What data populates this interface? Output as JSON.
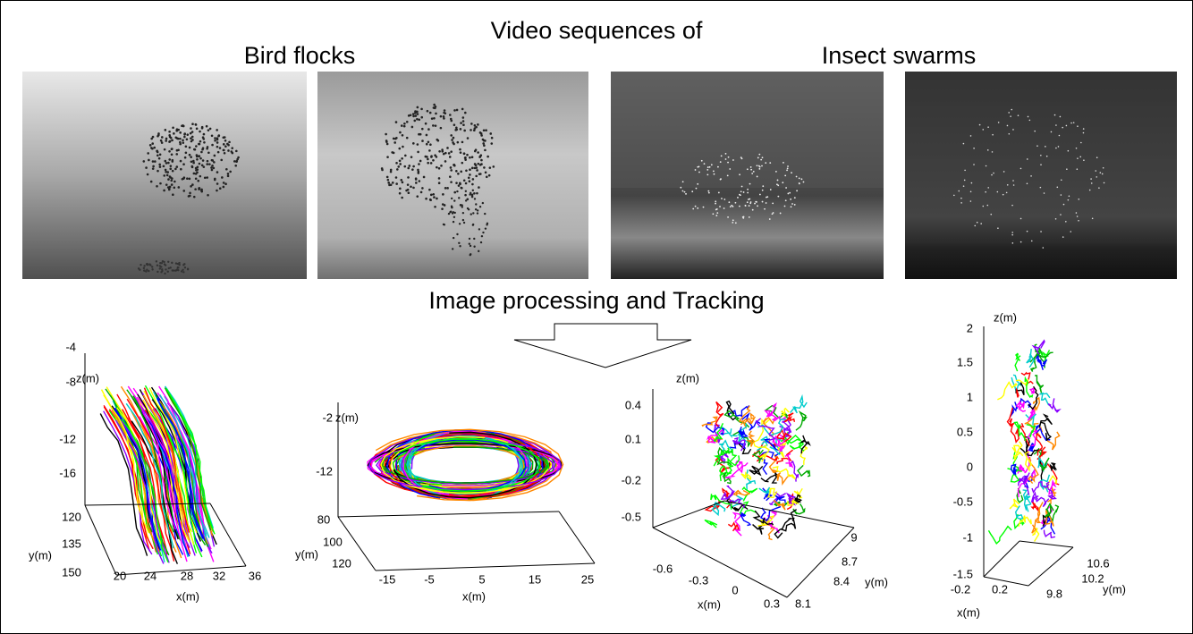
{
  "header": {
    "title": "Video sequences of",
    "left_label": "Bird flocks",
    "right_label": "Insect swarms"
  },
  "processing_label": "Image processing and Tracking",
  "plots": [
    {
      "z_label": "z(m)",
      "y_label": "y(m)",
      "x_label": "x(m)",
      "z_ticks": [
        -4,
        -8,
        -12,
        -16
      ],
      "y_ticks": [
        120,
        135,
        150
      ],
      "x_ticks": [
        20,
        24,
        28,
        32,
        36
      ]
    },
    {
      "z_label": "z(m)",
      "y_label": "y(m)",
      "x_label": "x(m)",
      "z_ticks": [
        -2,
        -12
      ],
      "y_ticks": [
        80,
        100,
        120
      ],
      "x_ticks": [
        -15,
        -5,
        5,
        15,
        25
      ]
    },
    {
      "z_label": "z(m)",
      "y_label": "y(m)",
      "x_label": "x(m)",
      "z_ticks": [
        0.4,
        0.1,
        -0.2,
        -0.5
      ],
      "y_ticks": [
        9,
        8.7,
        8.4,
        8.1
      ],
      "x_ticks": [
        -0.6,
        -0.3,
        0,
        0.3
      ]
    },
    {
      "z_label": "z(m)",
      "y_label": "y(m)",
      "x_label": "x(m)",
      "z_ticks": [
        2,
        1.5,
        1,
        0.5,
        0,
        -0.5,
        -1,
        -1.5
      ],
      "y_ticks": [
        10.6,
        10.2,
        9.8
      ],
      "x_ticks": [
        -0.2,
        0.2
      ]
    }
  ]
}
